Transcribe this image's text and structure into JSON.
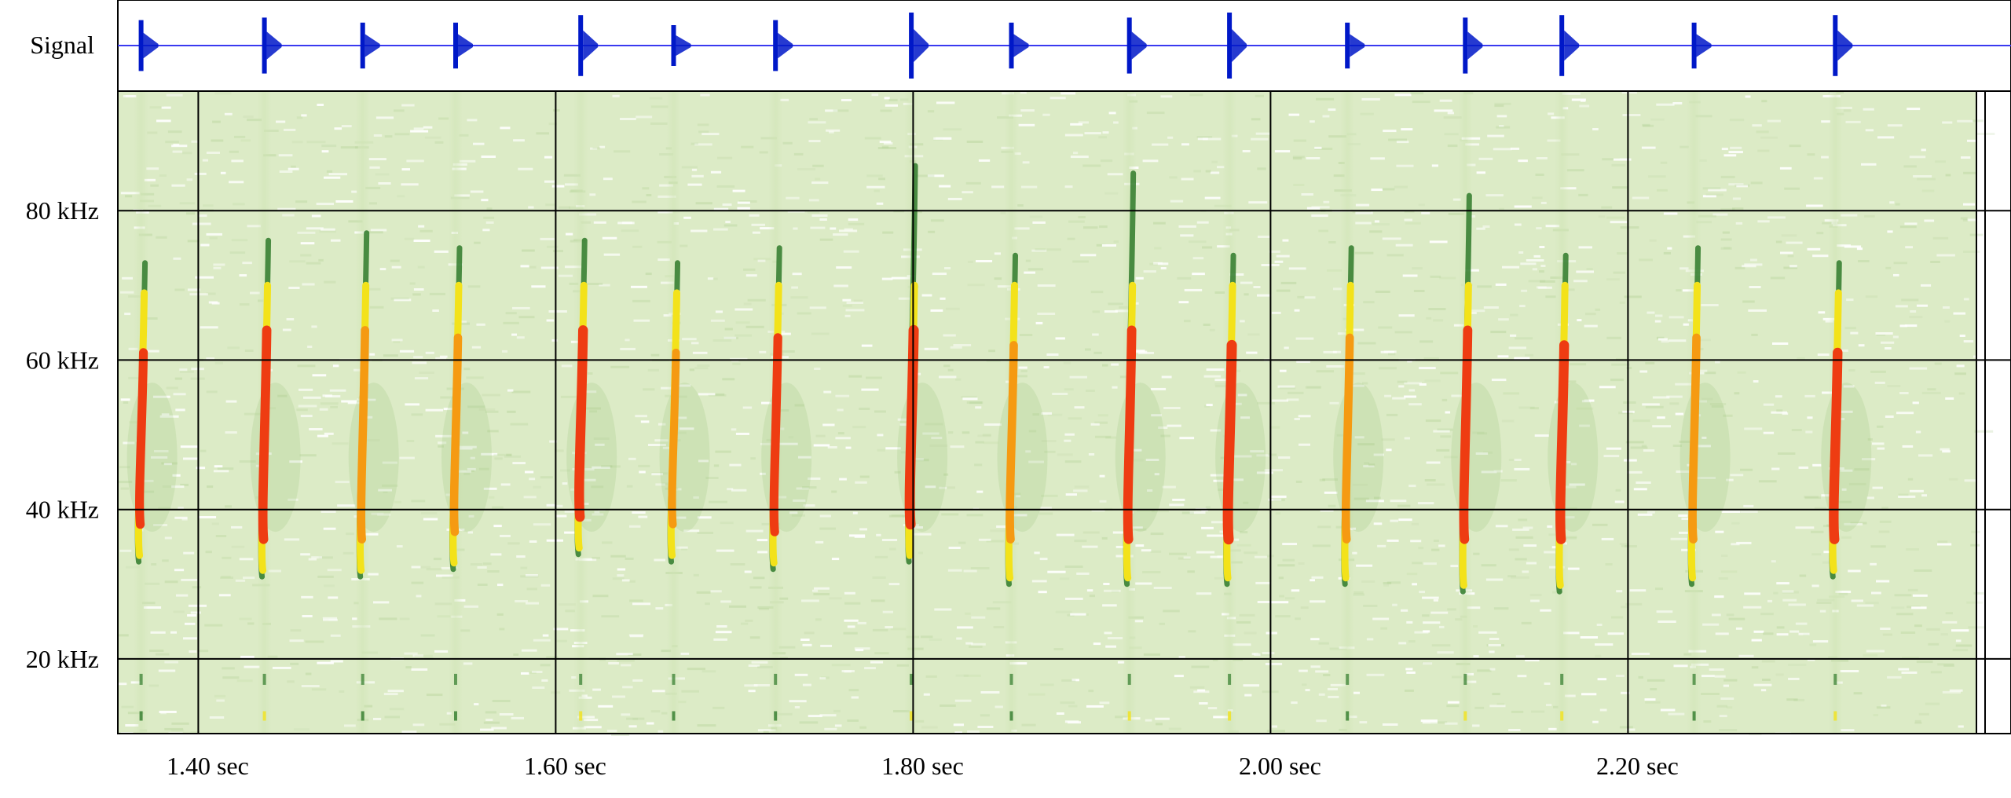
{
  "chart_data": {
    "type": "spectrogram",
    "title": "",
    "signal_label": "Signal",
    "xlabel": "",
    "ylabel": "",
    "x_unit": "sec",
    "y_unit": "kHz",
    "xlim": [
      1.355,
      2.395
    ],
    "ylim": [
      10,
      96
    ],
    "x_ticks": [
      1.4,
      1.6,
      1.8,
      2.0,
      2.2
    ],
    "x_tick_labels": [
      "1.40 sec",
      "1.60 sec",
      "1.80 sec",
      "2.00 sec",
      "2.20 sec"
    ],
    "y_ticks": [
      20,
      40,
      60,
      80
    ],
    "y_tick_labels": [
      "20 kHz",
      "40 kHz",
      "60 kHz",
      "80 kHz"
    ],
    "grid": true,
    "calls": [
      {
        "t": 1.368,
        "f_low": 33,
        "f_high": 73,
        "peak": 0.7
      },
      {
        "t": 1.437,
        "f_low": 31,
        "f_high": 76,
        "peak": 0.8
      },
      {
        "t": 1.492,
        "f_low": 31,
        "f_high": 77,
        "peak": 0.6
      },
      {
        "t": 1.544,
        "f_low": 32,
        "f_high": 75,
        "peak": 0.6
      },
      {
        "t": 1.614,
        "f_low": 34,
        "f_high": 76,
        "peak": 0.9
      },
      {
        "t": 1.666,
        "f_low": 33,
        "f_high": 73,
        "peak": 0.5
      },
      {
        "t": 1.723,
        "f_low": 32,
        "f_high": 75,
        "peak": 0.7
      },
      {
        "t": 1.799,
        "f_low": 33,
        "f_high": 86,
        "peak": 1.0
      },
      {
        "t": 1.855,
        "f_low": 30,
        "f_high": 74,
        "peak": 0.6
      },
      {
        "t": 1.921,
        "f_low": 30,
        "f_high": 85,
        "peak": 0.8
      },
      {
        "t": 1.977,
        "f_low": 30,
        "f_high": 74,
        "peak": 1.0
      },
      {
        "t": 2.043,
        "f_low": 30,
        "f_high": 75,
        "peak": 0.6
      },
      {
        "t": 2.109,
        "f_low": 29,
        "f_high": 82,
        "peak": 0.8
      },
      {
        "t": 2.163,
        "f_low": 29,
        "f_high": 74,
        "peak": 0.9
      },
      {
        "t": 2.237,
        "f_low": 30,
        "f_high": 75,
        "peak": 0.6
      },
      {
        "t": 2.316,
        "f_low": 31,
        "f_high": 73,
        "peak": 0.9
      }
    ]
  },
  "colors": {
    "waveform": "#0018c8",
    "signal_baseline": "#3a3af0",
    "grid": "#000000",
    "background": "#ffffff",
    "spectro_faint": "#dcebc6",
    "spectro_mid": "#9cc27a",
    "spectro_contour": "#2f7a2a",
    "spectro_yellow": "#f3e21a",
    "spectro_orange": "#f59a12",
    "spectro_red": "#ee3c12"
  }
}
